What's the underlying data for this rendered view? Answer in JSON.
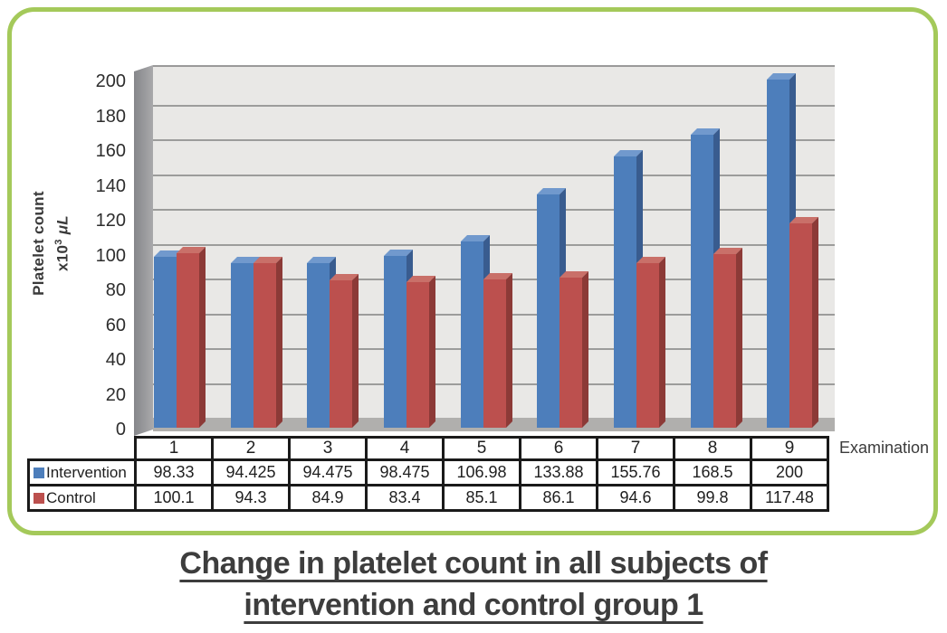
{
  "frame": {
    "border_color": "#a4c95a"
  },
  "caption": {
    "line1": "Change in platelet count in all subjects of",
    "line2": "intervention and control group 1"
  },
  "chart_data": {
    "type": "bar",
    "style": "3d-clustered-column",
    "title": "Change in platelet count in all subjects of intervention and control group 1",
    "xlabel": "Examination",
    "ylabel_line1": "Platelet count",
    "ylabel_base": "x10",
    "ylabel_sup": "3",
    "ylabel_unit": "μL",
    "ylim": [
      0,
      200
    ],
    "yticks": [
      0,
      20,
      40,
      60,
      80,
      100,
      120,
      140,
      160,
      180,
      200
    ],
    "grid": true,
    "legend_position": "table-left",
    "categories": [
      "1",
      "2",
      "3",
      "4",
      "5",
      "6",
      "7",
      "8",
      "9"
    ],
    "series": [
      {
        "name": "Intervention",
        "color": "#4d7ebb",
        "color_light": "#7199cd",
        "color_dark": "#395c8f",
        "values": [
          98.33,
          94.425,
          94.475,
          98.475,
          106.98,
          133.88,
          155.76,
          168.5,
          200
        ]
      },
      {
        "name": "Control",
        "color": "#bc504e",
        "color_light": "#c97069",
        "color_dark": "#8c3a37",
        "values": [
          100.1,
          94.3,
          84.9,
          83.4,
          85.1,
          86.1,
          94.6,
          99.8,
          117.48
        ]
      }
    ],
    "plot_bg": "#e9e8e6",
    "gridline_color": "#9c9c9b",
    "floor_color": "#b0afad"
  }
}
